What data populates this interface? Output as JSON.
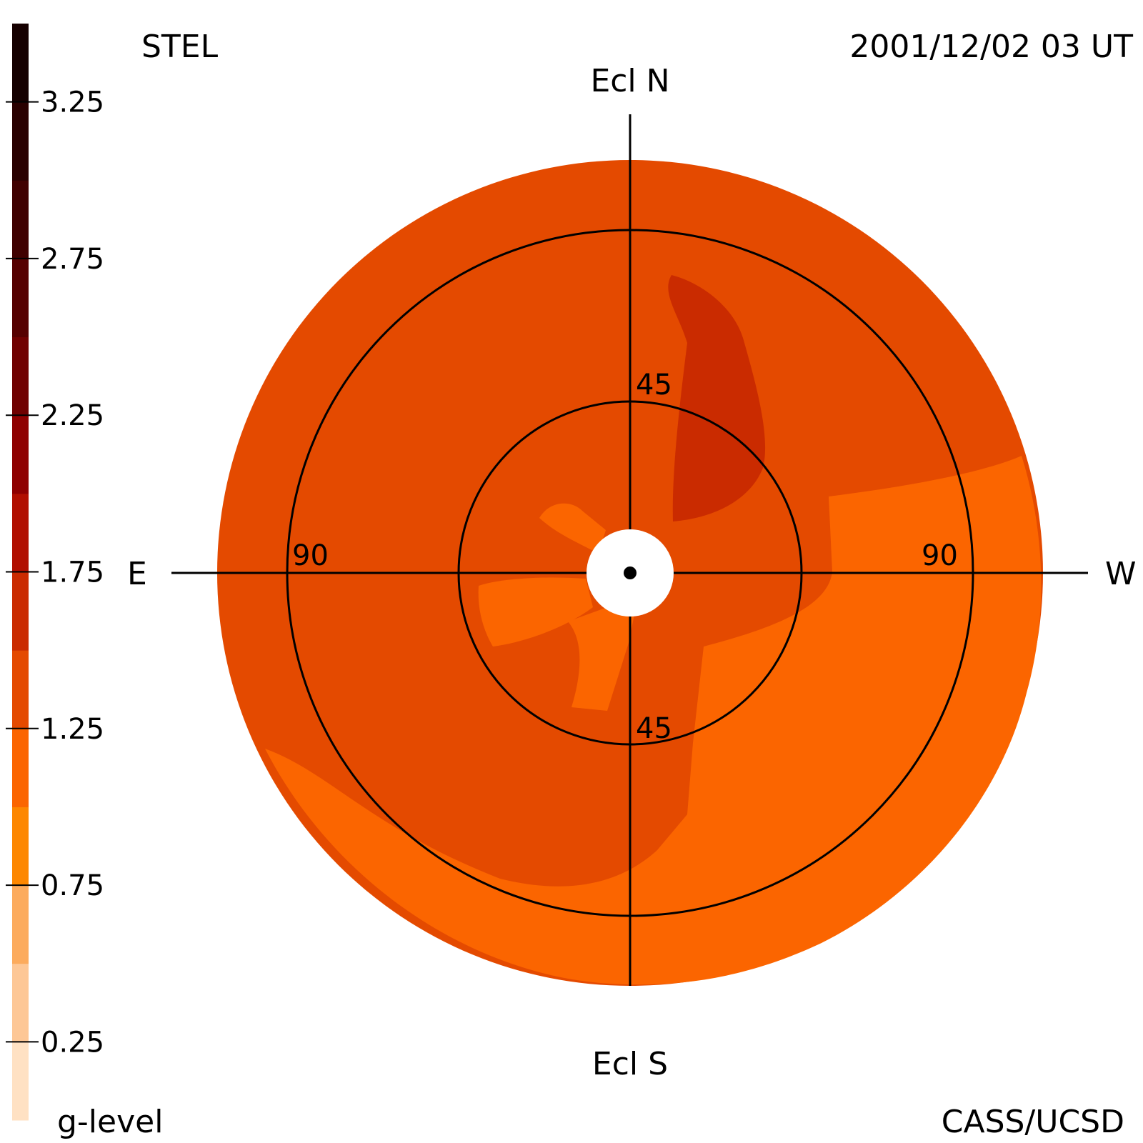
{
  "header": {
    "instrument": "STEL",
    "datetime": "2001/12/02 03 UT"
  },
  "footer": {
    "colorbar_label": "g-level",
    "credit": "CASS/UCSD"
  },
  "directions": {
    "north": "Ecl N",
    "south": "Ecl S",
    "east": "E",
    "west": "W"
  },
  "rings": {
    "inner_label": "45",
    "outer_label": "90"
  },
  "colorbar": {
    "min": 0,
    "max": 3.5,
    "tick_labels": [
      "3.25",
      "2.75",
      "2.25",
      "1.75",
      "1.25",
      "0.75",
      "0.25"
    ],
    "tick_values": [
      3.25,
      2.75,
      2.25,
      1.75,
      1.25,
      0.75,
      0.25
    ],
    "bands": [
      {
        "from": 0.0,
        "to": 0.25,
        "color": "#ffe1c3"
      },
      {
        "from": 0.25,
        "to": 0.5,
        "color": "#fdc796"
      },
      {
        "from": 0.5,
        "to": 0.75,
        "color": "#fcab5d"
      },
      {
        "from": 0.75,
        "to": 1.0,
        "color": "#fd8700"
      },
      {
        "from": 1.0,
        "to": 1.25,
        "color": "#fb6500"
      },
      {
        "from": 1.25,
        "to": 1.5,
        "color": "#e44a00"
      },
      {
        "from": 1.5,
        "to": 1.75,
        "color": "#ca2b00"
      },
      {
        "from": 1.75,
        "to": 2.0,
        "color": "#b10f00"
      },
      {
        "from": 2.0,
        "to": 2.25,
        "color": "#8f0000"
      },
      {
        "from": 2.25,
        "to": 2.5,
        "color": "#700000"
      },
      {
        "from": 2.5,
        "to": 2.75,
        "color": "#560000"
      },
      {
        "from": 2.75,
        "to": 3.0,
        "color": "#400000"
      },
      {
        "from": 3.0,
        "to": 3.25,
        "color": "#290000"
      },
      {
        "from": 3.25,
        "to": 3.5,
        "color": "#150000"
      }
    ]
  }
}
